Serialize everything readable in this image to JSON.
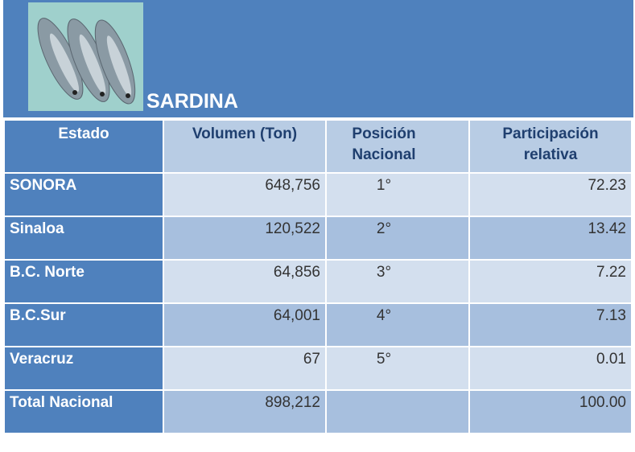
{
  "header": {
    "title": "SARDINA"
  },
  "table": {
    "columns": [
      "Estado",
      "Volumen (Ton)",
      "Posición Nacional",
      "Participación relativa"
    ],
    "rows": [
      [
        "SONORA",
        "648,756",
        "1°",
        "72.23"
      ],
      [
        "Sinaloa",
        "120,522",
        "2°",
        "13.42"
      ],
      [
        "B.C. Norte",
        "64,856",
        "3°",
        "7.22"
      ],
      [
        "B.C.Sur",
        "64,001",
        "4°",
        "7.13"
      ],
      [
        "Veracruz",
        "67",
        "5°",
        "0.01"
      ],
      [
        "Total Nacional",
        "898,212",
        "",
        "100.00"
      ]
    ]
  }
}
